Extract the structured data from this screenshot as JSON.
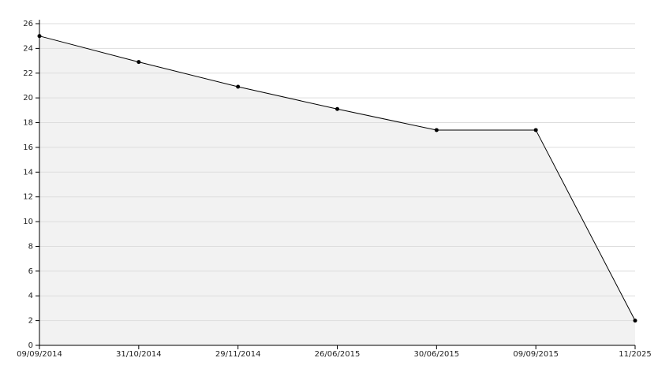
{
  "chart_data": {
    "type": "line",
    "area": true,
    "categories": [
      "09/09/2014",
      "31/10/2014",
      "29/11/2014",
      "26/06/2015",
      "30/06/2015",
      "09/09/2015",
      "11/2025"
    ],
    "values": [
      25,
      22.9,
      20.9,
      19.1,
      17.4,
      17.4,
      2
    ],
    "color": "#000000",
    "fill": "#f2f2f2",
    "ylim": [
      0,
      26
    ],
    "yticks": [
      0,
      2,
      4,
      6,
      8,
      10,
      12,
      14,
      16,
      18,
      20,
      22,
      24,
      26
    ],
    "grid": true
  }
}
